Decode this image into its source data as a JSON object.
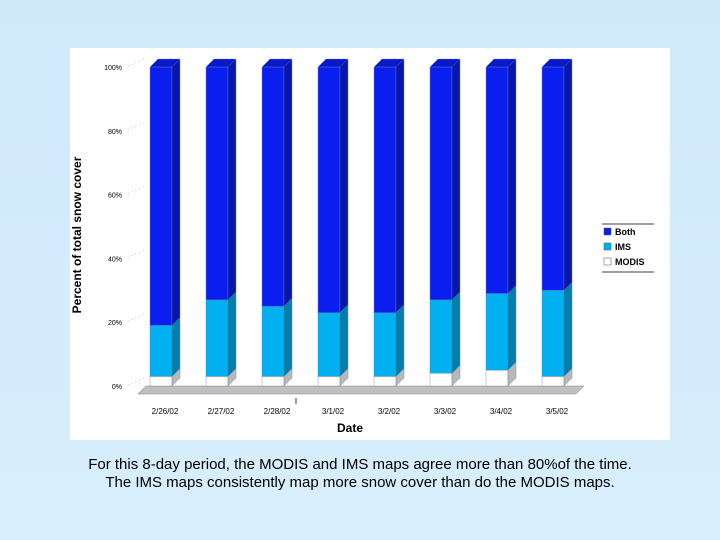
{
  "chart_data": {
    "type": "bar",
    "stacked": true,
    "view": "3d-columns",
    "categories": [
      "2/26/02",
      "2/27/02",
      "2/28/02",
      "3/1/02",
      "3/2/02",
      "3/3/02",
      "3/4/02",
      "3/5/02"
    ],
    "series": [
      {
        "name": "MODIS",
        "color": "#ffffff",
        "values": [
          3,
          3,
          3,
          3,
          3,
          4,
          5,
          3
        ]
      },
      {
        "name": "IMS",
        "color": "#00b0f0",
        "values": [
          16,
          24,
          22,
          20,
          20,
          23,
          24,
          27
        ]
      },
      {
        "name": "Both",
        "color": "#0a1ef0",
        "values": [
          81,
          73,
          75,
          77,
          77,
          73,
          71,
          70
        ]
      }
    ],
    "yticks": [
      "0%",
      "20%",
      "40%",
      "60%",
      "80%",
      "100%"
    ],
    "ylim": [
      0,
      100
    ],
    "xlabel": "Date",
    "ylabel": "Percent of total snow cover",
    "legend": {
      "position": "right",
      "order": [
        "Both",
        "IMS",
        "MODIS"
      ]
    },
    "grid": false
  },
  "caption": {
    "line1": "For this 8-day period, the MODIS and IMS maps agree more than 80%of the time.",
    "line2": "The IMS maps consistently map more snow cover than do the MODIS maps."
  }
}
